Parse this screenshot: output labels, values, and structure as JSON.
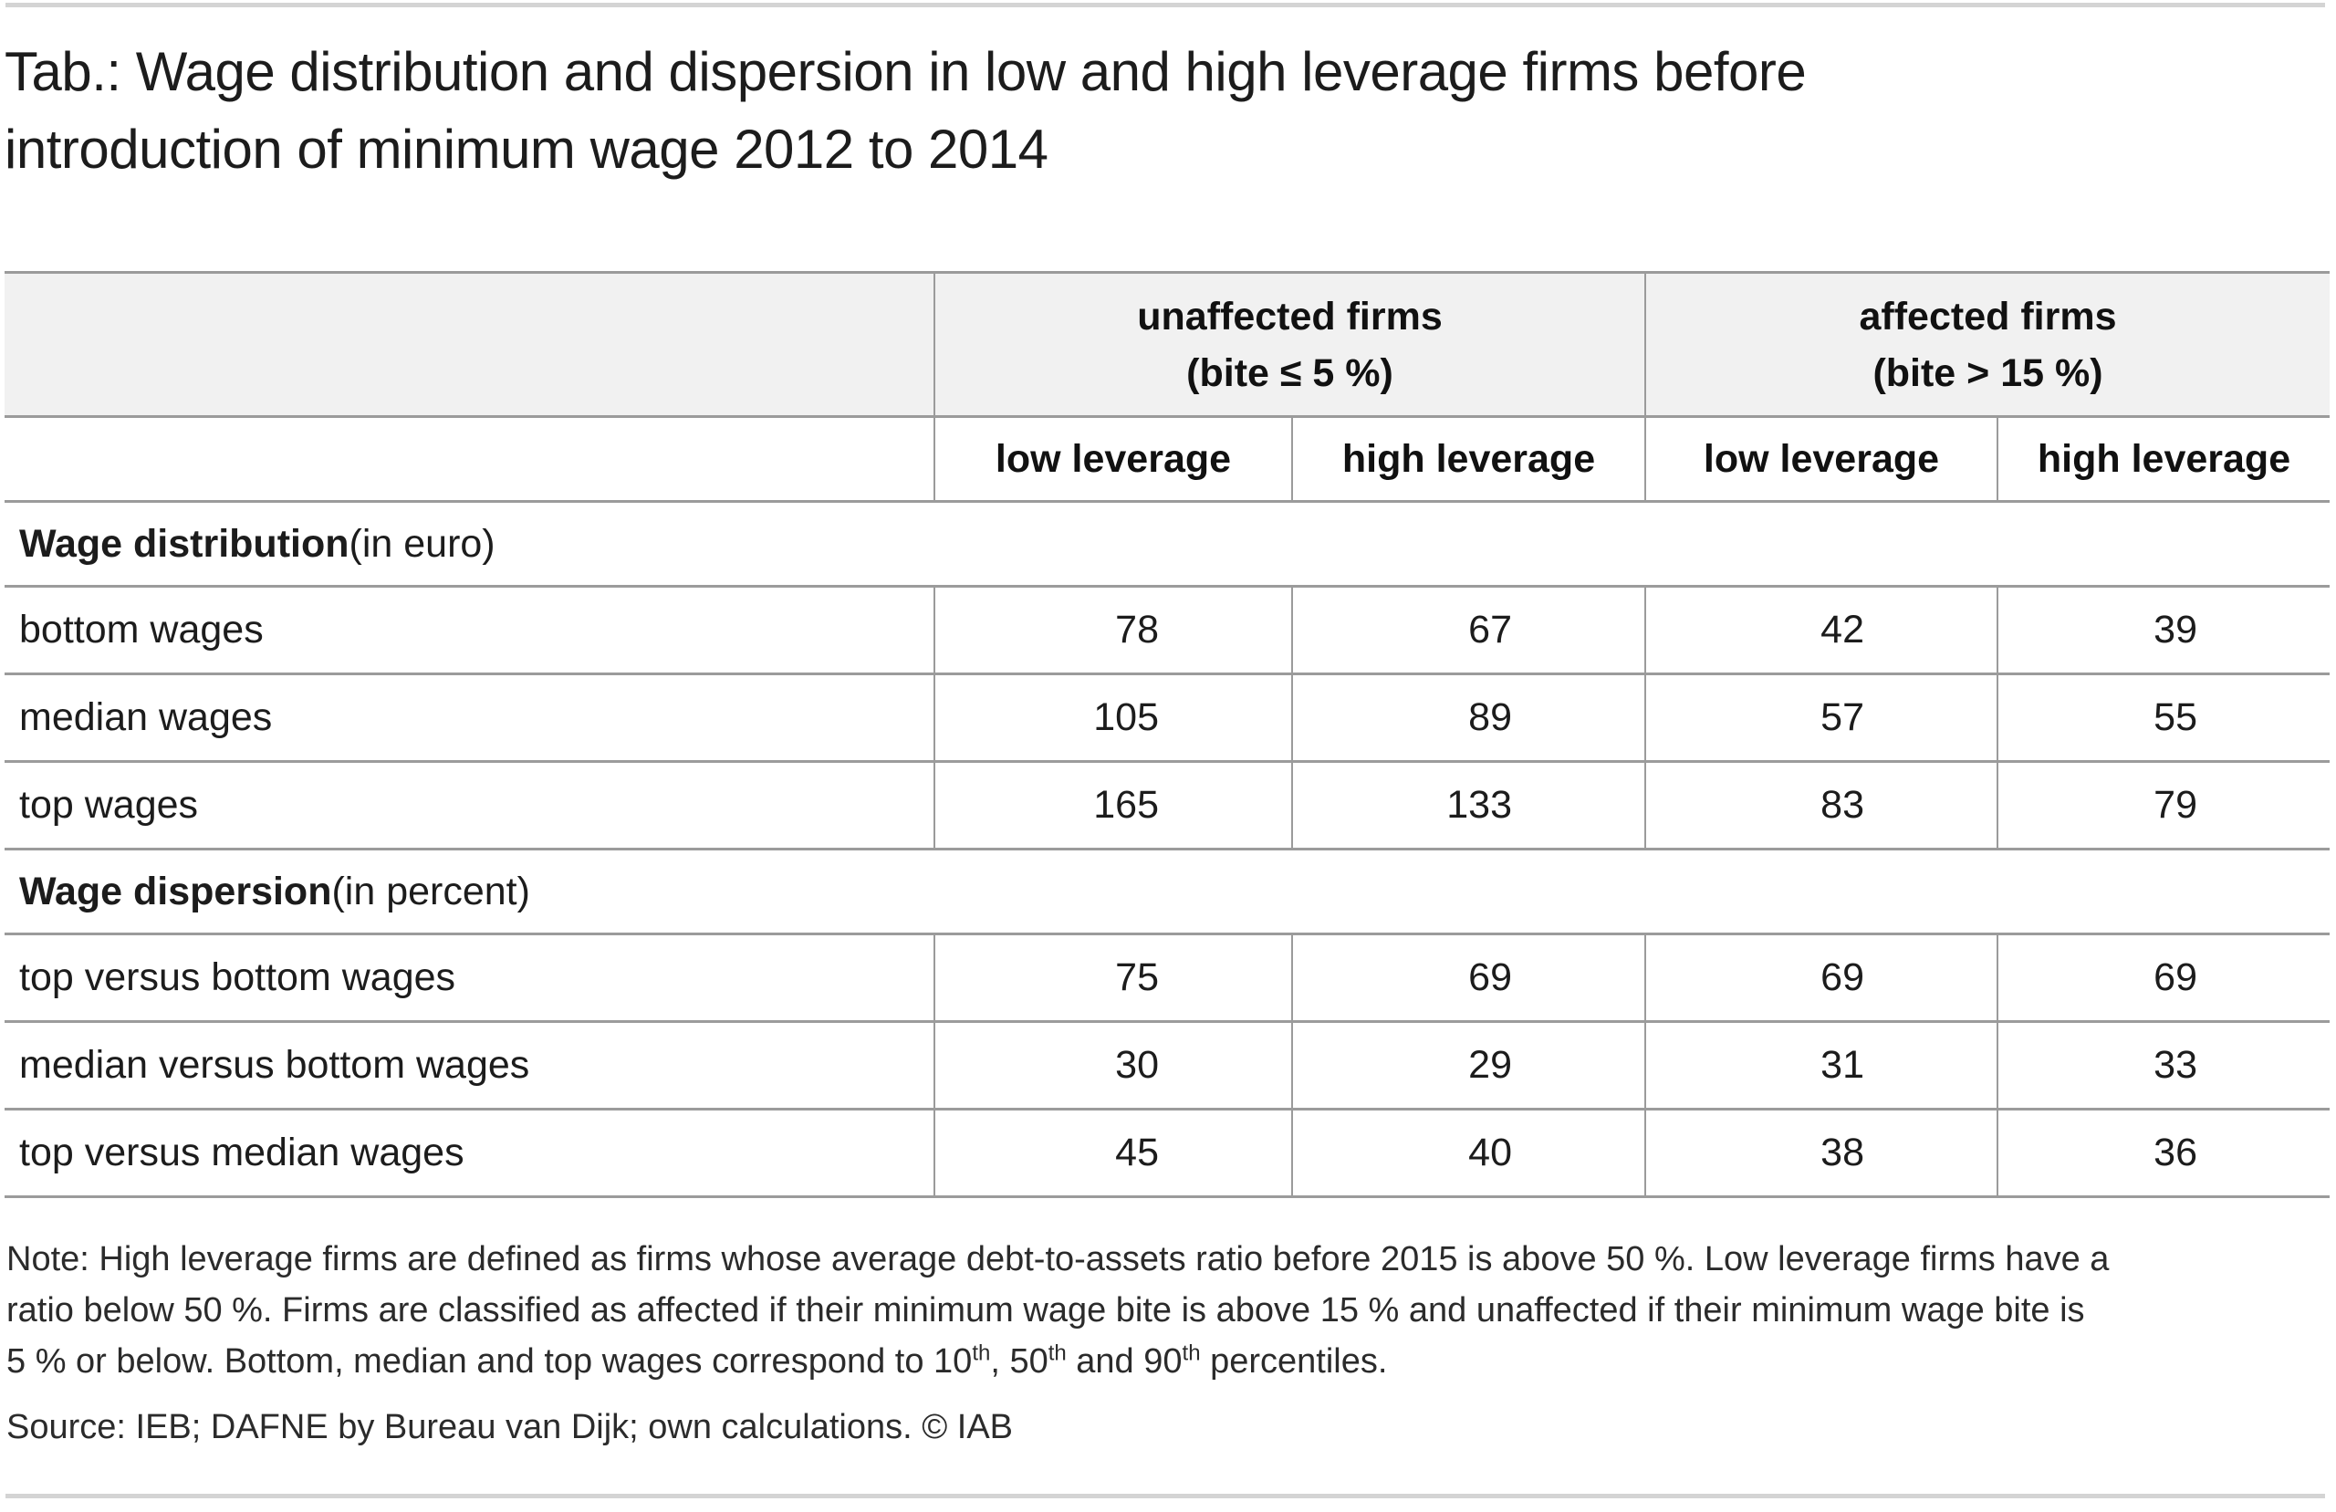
{
  "title": {
    "line1": "Tab.: Wage distribution and dispersion in low and high leverage firms before",
    "line2": "introduction of minimum wage 2012 to 2014"
  },
  "table": {
    "group_headers": [
      {
        "line1": "unaffected firms",
        "line2": "(bite ≤ 5 %)"
      },
      {
        "line1": "affected firms",
        "line2": "(bite > 15 %)"
      }
    ],
    "col_headers": [
      "low leverage",
      "high leverage",
      "low leverage",
      "high leverage"
    ],
    "sections": [
      {
        "title_bold": "Wage distribution",
        "title_rest": " (in euro)",
        "rows": [
          {
            "label": "bottom wages",
            "values": [
              "78",
              "67",
              "42",
              "39"
            ]
          },
          {
            "label": "median wages",
            "values": [
              "105",
              "89",
              "57",
              "55"
            ]
          },
          {
            "label": "top wages",
            "values": [
              "165",
              "133",
              "83",
              "79"
            ]
          }
        ]
      },
      {
        "title_bold": "Wage dispersion",
        "title_rest": " (in percent)",
        "rows": [
          {
            "label": "top versus bottom wages",
            "values": [
              "75",
              "69",
              "69",
              "69"
            ]
          },
          {
            "label": "median versus bottom wages",
            "values": [
              "30",
              "29",
              "31",
              "33"
            ]
          },
          {
            "label": "top versus median wages",
            "values": [
              "45",
              "40",
              "38",
              "36"
            ]
          }
        ]
      }
    ]
  },
  "note": {
    "line1": "Note: High leverage firms are defined as firms whose average debt-to-assets ratio before 2015 is above 50 %. Low leverage firms have a",
    "line2": "ratio below 50 %. Firms are classified as affected if their minimum wage bite is above 15 % and unaffected if their minimum wage bite is",
    "line3": {
      "seg1": "5 % or below. Bottom, median and top wages correspond to 10",
      "sup1": "th",
      "seg2": ", 50",
      "sup2": "th",
      "seg3": " and 90",
      "sup3": "th",
      "seg4": " percentiles."
    }
  },
  "source": "Source: IEB; DAFNE by Bureau van Dijk; own calculations. © IAB",
  "colors": {
    "header_background": "#f1f1f1",
    "table_border": "#9b9b9b",
    "page_rule": "#d4d4d4",
    "text": "#1c1c1c"
  }
}
